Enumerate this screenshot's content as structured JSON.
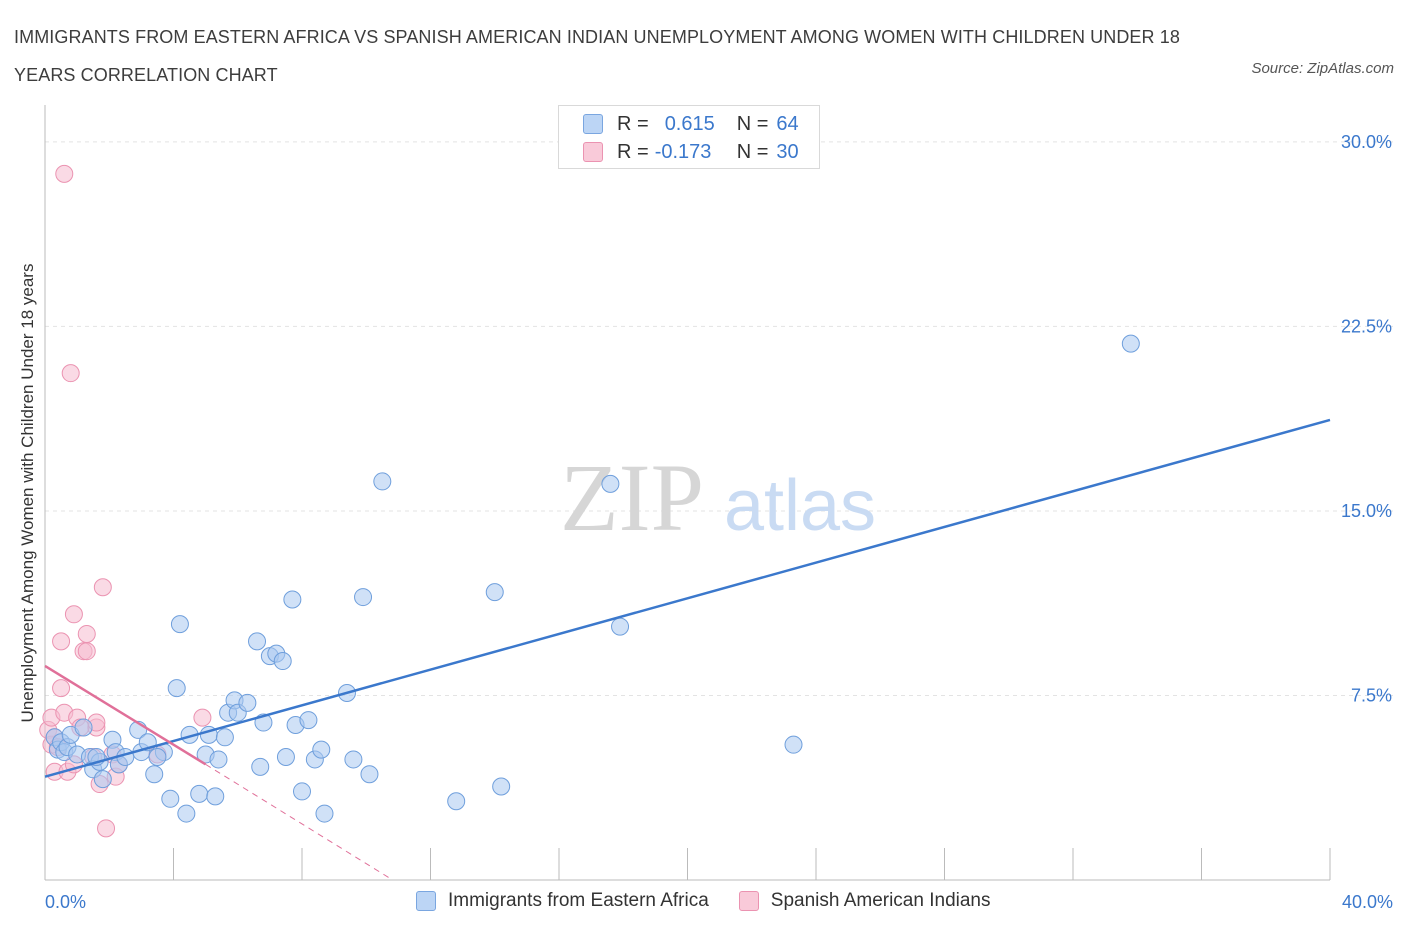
{
  "header": {
    "title": "IMMIGRANTS FROM EASTERN AFRICA VS SPANISH AMERICAN INDIAN UNEMPLOYMENT AMONG WOMEN WITH CHILDREN UNDER 18 YEARS CORRELATION CHART",
    "source": "Source: ZipAtlas.com"
  },
  "watermark": {
    "zip": "ZIP",
    "atlas": "atlas"
  },
  "legend_top": {
    "rows": [
      {
        "r_label": "R =",
        "r_value": "0.615",
        "n_label": "N =",
        "n_value": "64",
        "color": "#a9c8f0"
      },
      {
        "r_label": "R =",
        "r_value": "-0.173",
        "n_label": "N =",
        "n_value": "30",
        "color": "#f6bcd0"
      }
    ]
  },
  "legend_bottom": [
    {
      "label": "Immigrants from Eastern Africa",
      "color": "#a9c8f0"
    },
    {
      "label": "Spanish American Indians",
      "color": "#f6bcd0"
    }
  ],
  "colors": {
    "blue": "#3b78cc",
    "blue_fill": "#a9c8f0",
    "pink": "#e07099",
    "pink_fill": "#f6bcd0",
    "grid": "#e3e3e3",
    "axis_label": "#3b78cc"
  },
  "chart_data": {
    "type": "scatter",
    "title": "IMMIGRANTS FROM EASTERN AFRICA VS SPANISH AMERICAN INDIAN UNEMPLOYMENT AMONG WOMEN WITH CHILDREN UNDER 18 YEARS CORRELATION CHART",
    "xlabel": "",
    "ylabel": "Unemployment Among Women with Children Under 18 years",
    "xlim": [
      0,
      40
    ],
    "ylim": [
      0,
      31.5
    ],
    "x_tick_labels": [
      "0.0%",
      "40.0%"
    ],
    "y_ticks": [
      7.5,
      15.0,
      22.5,
      30.0
    ],
    "y_tick_labels": [
      "7.5%",
      "15.0%",
      "22.5%",
      "30.0%"
    ],
    "grid": true,
    "series": [
      {
        "name": "Immigrants from Eastern Africa",
        "R": 0.615,
        "N": 64,
        "trend": {
          "x": [
            0.0,
            40.0
          ],
          "y": [
            4.2,
            18.7
          ]
        },
        "points": [
          [
            0.3,
            5.8
          ],
          [
            0.4,
            5.3
          ],
          [
            0.5,
            5.6
          ],
          [
            0.6,
            5.2
          ],
          [
            0.7,
            5.4
          ],
          [
            0.8,
            5.9
          ],
          [
            1.0,
            5.1
          ],
          [
            1.2,
            6.2
          ],
          [
            1.4,
            5.0
          ],
          [
            1.5,
            4.5
          ],
          [
            1.7,
            4.8
          ],
          [
            1.8,
            4.1
          ],
          [
            2.1,
            5.7
          ],
          [
            2.2,
            5.2
          ],
          [
            2.3,
            4.7
          ],
          [
            2.5,
            5.0
          ],
          [
            2.9,
            6.1
          ],
          [
            3.0,
            5.2
          ],
          [
            3.2,
            5.6
          ],
          [
            3.4,
            4.3
          ],
          [
            3.7,
            5.2
          ],
          [
            3.9,
            3.3
          ],
          [
            4.1,
            7.8
          ],
          [
            4.2,
            10.4
          ],
          [
            4.4,
            2.7
          ],
          [
            4.5,
            5.9
          ],
          [
            4.8,
            3.5
          ],
          [
            5.0,
            5.1
          ],
          [
            5.1,
            5.9
          ],
          [
            5.3,
            3.4
          ],
          [
            5.4,
            4.9
          ],
          [
            5.6,
            5.8
          ],
          [
            5.7,
            6.8
          ],
          [
            5.9,
            7.3
          ],
          [
            6.0,
            6.8
          ],
          [
            6.3,
            7.2
          ],
          [
            6.6,
            9.7
          ],
          [
            6.7,
            4.6
          ],
          [
            6.8,
            6.4
          ],
          [
            7.0,
            9.1
          ],
          [
            7.2,
            9.2
          ],
          [
            7.4,
            8.9
          ],
          [
            7.5,
            5.0
          ],
          [
            7.7,
            11.4
          ],
          [
            7.8,
            6.3
          ],
          [
            8.0,
            3.6
          ],
          [
            8.2,
            6.5
          ],
          [
            8.4,
            4.9
          ],
          [
            8.6,
            5.3
          ],
          [
            8.7,
            2.7
          ],
          [
            9.4,
            7.6
          ],
          [
            9.6,
            4.9
          ],
          [
            9.9,
            11.5
          ],
          [
            10.1,
            4.3
          ],
          [
            10.5,
            16.2
          ],
          [
            12.8,
            3.2
          ],
          [
            14.0,
            11.7
          ],
          [
            14.2,
            3.8
          ],
          [
            17.6,
            16.1
          ],
          [
            17.9,
            10.3
          ],
          [
            23.3,
            5.5
          ],
          [
            33.8,
            21.8
          ],
          [
            1.6,
            5.0
          ],
          [
            3.5,
            5.0
          ]
        ]
      },
      {
        "name": "Spanish American Indians",
        "R": -0.173,
        "N": 30,
        "trend": {
          "x": [
            0.0,
            5.0
          ],
          "y": [
            8.7,
            4.7
          ]
        },
        "trend_extension": {
          "x": [
            5.0,
            10.7
          ],
          "y": [
            4.7,
            0.1
          ]
        },
        "points": [
          [
            0.1,
            6.1
          ],
          [
            0.2,
            6.6
          ],
          [
            0.2,
            5.5
          ],
          [
            0.3,
            4.4
          ],
          [
            0.3,
            5.8
          ],
          [
            0.4,
            5.4
          ],
          [
            0.5,
            9.7
          ],
          [
            0.5,
            7.8
          ],
          [
            0.6,
            6.8
          ],
          [
            0.6,
            28.7
          ],
          [
            0.7,
            4.4
          ],
          [
            0.8,
            20.6
          ],
          [
            0.9,
            10.8
          ],
          [
            0.9,
            4.7
          ],
          [
            1.0,
            6.6
          ],
          [
            1.1,
            6.2
          ],
          [
            1.2,
            9.3
          ],
          [
            1.3,
            10.0
          ],
          [
            1.3,
            9.3
          ],
          [
            1.5,
            5.0
          ],
          [
            1.6,
            6.2
          ],
          [
            1.6,
            6.4
          ],
          [
            1.7,
            3.9
          ],
          [
            1.8,
            11.9
          ],
          [
            1.9,
            2.1
          ],
          [
            2.1,
            5.1
          ],
          [
            2.2,
            4.2
          ],
          [
            2.3,
            4.7
          ],
          [
            3.5,
            5.1
          ],
          [
            4.9,
            6.6
          ]
        ]
      }
    ]
  }
}
